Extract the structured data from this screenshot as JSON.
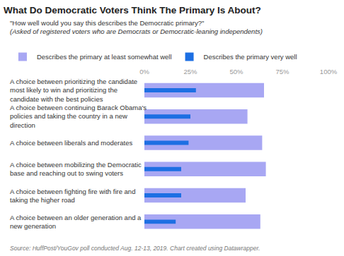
{
  "chart_data": {
    "type": "bar",
    "orientation": "horizontal",
    "title": "What Do Democratic Voters Think The Primary Is About?",
    "subtitle": [
      "\"How well would you say this describes the Democratic primary?\"",
      "(Asked of registered voters who are Democrats or Democratic-leaning independents)"
    ],
    "categories": [
      "A choice between prioritizing the candidate most likely to win and prioritizing the candidate with the best policies",
      "A choice between continuing Barack Obama's policies and taking the country in a new direction",
      "A choice between liberals and moderates",
      "A choice between mobilizing the Democratic base and reaching out to swing voters",
      "A choice between fighting fire with fire and taking the higher road",
      "A choice between an older generation and a new generation"
    ],
    "series": [
      {
        "name": "Describes the primary at least somewhat well",
        "color": "#a8a7f3",
        "values": [
          65,
          56,
          64,
          66,
          55,
          63
        ]
      },
      {
        "name": "Describes the primary very well",
        "color": "#1d6fe3",
        "values": [
          28,
          25,
          24,
          20,
          20,
          17
        ]
      }
    ],
    "xlim": [
      0,
      100
    ],
    "xticks": [
      {
        "value": 0,
        "label": "0%"
      },
      {
        "value": 25,
        "label": "25%"
      },
      {
        "value": 50,
        "label": "50%"
      },
      {
        "value": 75,
        "label": "75%"
      },
      {
        "value": 100,
        "label": "100%"
      }
    ],
    "grid": false,
    "legend": "top",
    "stacked": false,
    "data_labels": false,
    "annotations": [
      "Source: HuffPost/YouGov poll conducted Aug. 12-13, 2019. Chart created using Datawrapper."
    ]
  }
}
